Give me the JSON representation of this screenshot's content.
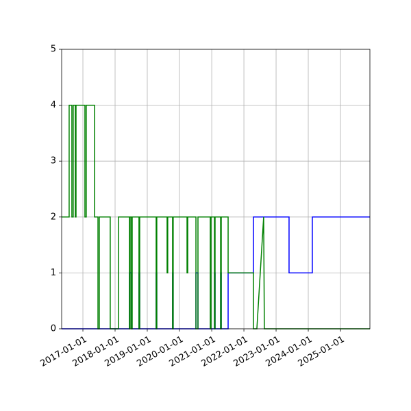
{
  "chart_data": {
    "type": "line",
    "xlim": [
      "2016-05-05",
      "2025-11-30"
    ],
    "xticks": [
      "2017-01-01",
      "2018-01-01",
      "2019-01-01",
      "2020-01-01",
      "2021-01-01",
      "2022-01-01",
      "2023-01-01",
      "2024-01-01",
      "2025-01-01"
    ],
    "ylim": [
      0,
      5
    ],
    "yticks": [
      0,
      1,
      2,
      3,
      4,
      5
    ],
    "grid": true,
    "series": [
      {
        "color": "blue",
        "x": [
          "2016-05-05",
          "2018-06-13",
          "2018-06-13",
          "2018-07-06",
          "2018-07-06",
          "2018-09-29",
          "2018-09-29",
          "2018-10-07",
          "2018-10-07",
          "2019-04-12",
          "2019-04-12",
          "2019-04-19",
          "2019-04-19",
          "2019-10-15",
          "2019-10-15",
          "2019-10-22",
          "2019-10-22",
          "2020-07-06",
          "2020-07-06",
          "2020-07-29",
          "2020-07-29",
          "2021-02-01",
          "2021-02-01",
          "2021-02-08",
          "2021-02-08",
          "2021-04-12",
          "2021-04-12",
          "2021-04-19",
          "2021-04-19",
          "2021-07-06",
          "2021-07-06",
          "2022-04-19",
          "2022-04-19",
          "2023-05-28",
          "2023-05-28",
          "2024-02-16",
          "2024-02-16",
          "2025-11-30"
        ],
        "values": [
          0,
          0,
          1,
          1,
          0,
          0,
          1,
          1,
          0,
          0,
          1,
          1,
          0,
          0,
          1,
          1,
          0,
          0,
          1,
          1,
          0,
          0,
          1,
          1,
          0,
          0,
          1,
          1,
          0,
          0,
          1,
          1,
          2,
          2,
          1,
          1,
          2,
          2
        ]
      },
      {
        "color": "green",
        "x": [
          "2016-05-05",
          "2016-07-29",
          "2016-07-29",
          "2016-08-29",
          "2016-08-29",
          "2016-09-13",
          "2016-09-13",
          "2016-10-07",
          "2016-10-07",
          "2016-10-15",
          "2016-10-15",
          "2017-01-24",
          "2017-01-24",
          "2017-02-08",
          "2017-02-08",
          "2017-05-13",
          "2017-05-13",
          "2017-06-21",
          "2017-06-21",
          "2017-07-06",
          "2017-07-06",
          "2017-07-29",
          "2017-07-29",
          "2017-11-07",
          "2017-11-07",
          "2018-01-24",
          "2018-01-24",
          "2018-02-08",
          "2018-02-08",
          "2018-06-13",
          "2018-06-13",
          "2018-06-21",
          "2018-06-21",
          "2018-07-06",
          "2018-07-06",
          "2018-07-14",
          "2018-07-14",
          "2018-09-29",
          "2018-09-29",
          "2018-10-07",
          "2018-10-07",
          "2019-04-12",
          "2019-04-12",
          "2019-04-19",
          "2019-04-19",
          "2019-08-14",
          "2019-08-14",
          "2019-08-21",
          "2019-08-21",
          "2019-10-15",
          "2019-10-15",
          "2019-10-22",
          "2019-10-22",
          "2020-03-27",
          "2020-03-27",
          "2020-04-04",
          "2020-04-04",
          "2020-07-06",
          "2020-07-06",
          "2020-07-29",
          "2020-07-29",
          "2020-12-16",
          "2020-12-16",
          "2020-12-24",
          "2020-12-24",
          "2021-02-01",
          "2021-02-01",
          "2021-02-08",
          "2021-02-08",
          "2021-04-12",
          "2021-04-12",
          "2021-04-19",
          "2021-04-19",
          "2021-07-06",
          "2021-07-06",
          "2022-04-19",
          "2022-04-19",
          "2022-05-28",
          "2022-08-13",
          "2022-08-13",
          "2022-08-21",
          "2025-11-30"
        ],
        "values": [
          2,
          2,
          4,
          4,
          2,
          2,
          4,
          4,
          2,
          2,
          4,
          4,
          2,
          2,
          4,
          4,
          2,
          2,
          0,
          0,
          2,
          2,
          2,
          2,
          0,
          0,
          0,
          0,
          2,
          2,
          0,
          0,
          2,
          2,
          0,
          0,
          2,
          2,
          0,
          0,
          2,
          2,
          0,
          0,
          2,
          2,
          1,
          1,
          2,
          2,
          0,
          0,
          2,
          2,
          1,
          1,
          2,
          2,
          0,
          0,
          2,
          2,
          0,
          0,
          2,
          2,
          0,
          0,
          2,
          2,
          0,
          0,
          2,
          2,
          1,
          1,
          0,
          0,
          2,
          2,
          0,
          0
        ]
      }
    ]
  }
}
